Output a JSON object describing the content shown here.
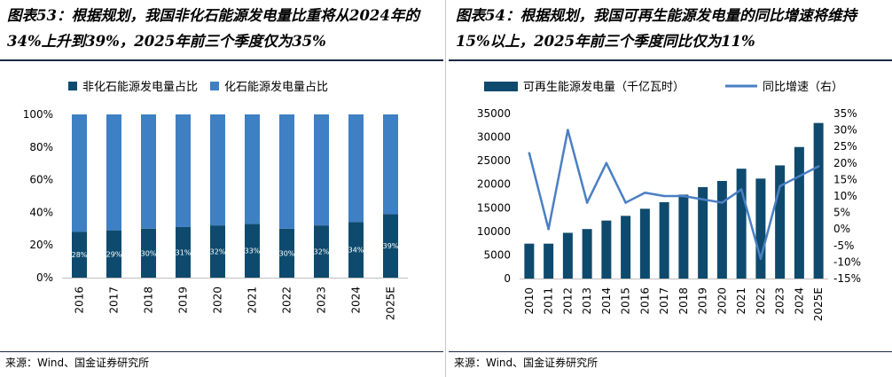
{
  "chart_data": [
    {
      "type": "bar",
      "stacked": true,
      "title": "图表53：根据规划，我国非化石能源发电量比重将从2024年的34%上升到39%，2025年前三个季度仅为35%",
      "source": "来源：Wind、国金证券研究所",
      "categories": [
        "2016",
        "2017",
        "2018",
        "2019",
        "2020",
        "2021",
        "2022",
        "2023",
        "2024",
        "2025E"
      ],
      "series": [
        {
          "name": "非化石能源发电量占比",
          "values": [
            28,
            29,
            30,
            31,
            32,
            33,
            30,
            32,
            34,
            39
          ],
          "color": "#0e4a6d"
        },
        {
          "name": "化石能源发电量占比",
          "values": [
            72,
            71,
            70,
            69,
            68,
            67,
            70,
            68,
            66,
            61
          ],
          "color": "#3f7fc3"
        }
      ],
      "data_labels": [
        "28%",
        "29%",
        "30%",
        "31%",
        "32%",
        "33%",
        "30%",
        "32%",
        "34%",
        "39%"
      ],
      "y_ticks": [
        "0%",
        "20%",
        "40%",
        "60%",
        "80%",
        "100%"
      ],
      "ylim": [
        0,
        100
      ],
      "legend_position": "top-left"
    },
    {
      "type": "bar+line",
      "title": "图表54：根据规划，我国可再生能源发电量的同比增速将维持15%以上，2025年前三个季度同比仅为11%",
      "source": "来源：Wind、国金证券研究所",
      "categories": [
        "2010",
        "2011",
        "2012",
        "2013",
        "2014",
        "2015",
        "2016",
        "2017",
        "2018",
        "2019",
        "2020",
        "2021",
        "2022",
        "2023",
        "2024",
        "2025E"
      ],
      "series": [
        {
          "name": "可再生能源发电量（千亿瓦时）",
          "type": "bar",
          "axis": "left",
          "values": [
            7400,
            7400,
            9700,
            10500,
            12300,
            13300,
            14800,
            16200,
            17800,
            19400,
            20700,
            23300,
            21200,
            24000,
            27900,
            33000
          ],
          "color": "#0e4a6d"
        },
        {
          "name": "同比增速（右）",
          "type": "line",
          "axis": "right",
          "values": [
            23,
            0,
            30,
            8,
            20,
            8,
            11,
            10,
            10,
            9,
            8,
            12,
            -9,
            13,
            16,
            19
          ],
          "color": "#4a7fc4"
        }
      ],
      "y_left_ticks": [
        "0",
        "5000",
        "10000",
        "15000",
        "20000",
        "25000",
        "30000",
        "35000"
      ],
      "y_left_lim": [
        0,
        35000
      ],
      "y_right_ticks": [
        "-15%",
        "-10%",
        "-5%",
        "0%",
        "5%",
        "10%",
        "15%",
        "20%",
        "25%",
        "30%",
        "35%"
      ],
      "y_right_lim": [
        -15,
        35
      ],
      "legend_position": "top"
    }
  ]
}
